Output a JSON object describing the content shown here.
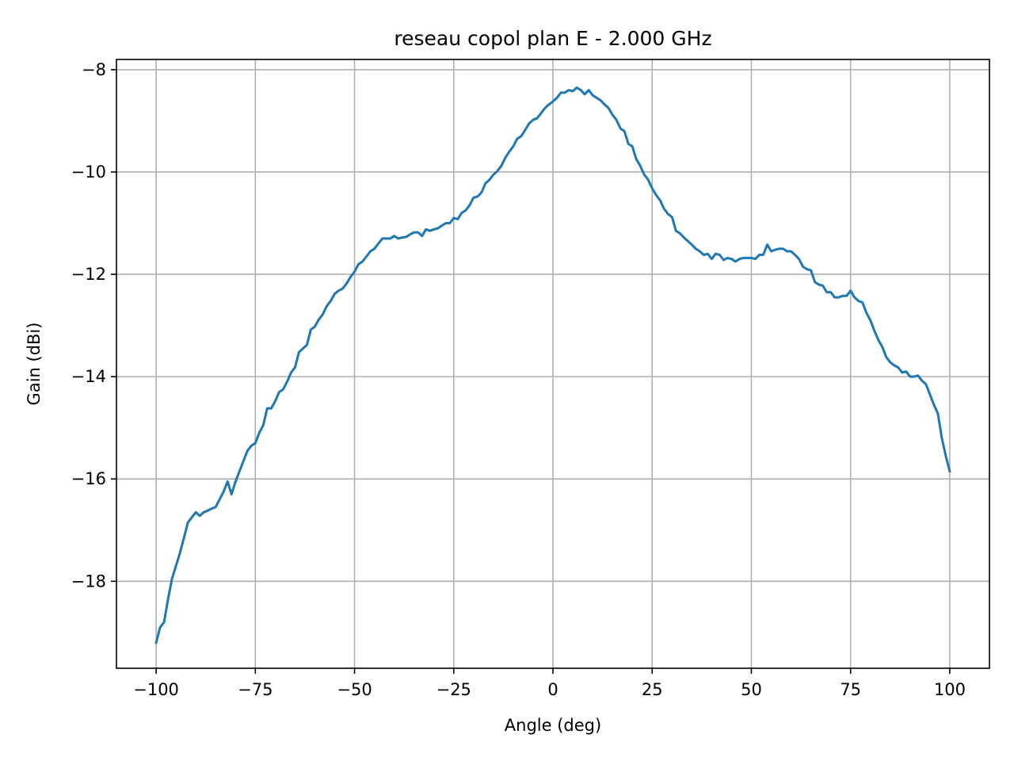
{
  "chart_data": {
    "type": "line",
    "title": "reseau copol plan E - 2.000 GHz",
    "xlabel": "Angle (deg)",
    "ylabel": "Gain (dBi)",
    "xlim": [
      -110,
      110
    ],
    "ylim": [
      -19.7,
      -7.8
    ],
    "xticks": [
      -100,
      -75,
      -50,
      -25,
      0,
      25,
      50,
      75,
      100
    ],
    "yticks": [
      -8,
      -10,
      -12,
      -14,
      -16,
      -18
    ],
    "xtick_labels": [
      "−100",
      "−75",
      "−50",
      "−25",
      "0",
      "25",
      "50",
      "75",
      "100"
    ],
    "ytick_labels": [
      "−8",
      "−10",
      "−12",
      "−14",
      "−16",
      "−18"
    ],
    "grid": true,
    "line_color": "#1f77b4",
    "series": [
      {
        "x": [
          -100,
          -99,
          -98,
          -97,
          -96,
          -95,
          -94,
          -93,
          -92,
          -91,
          -90,
          -89,
          -88,
          -87,
          -86,
          -85,
          -84,
          -83,
          -82,
          -81,
          -80,
          -79,
          -78,
          -77,
          -76,
          -75,
          -74,
          -73,
          -72,
          -71,
          -70,
          -69,
          -68,
          -67,
          -66,
          -65,
          -64,
          -63,
          -62,
          -61,
          -60,
          -59,
          -58,
          -57,
          -56,
          -55,
          -54,
          -53,
          -52,
          -51,
          -50,
          -49,
          -48,
          -47,
          -46,
          -45,
          -44,
          -43,
          -42,
          -41,
          -40,
          -39,
          -38,
          -37,
          -36,
          -35,
          -34,
          -33,
          -32,
          -31,
          -30,
          -29,
          -28,
          -27,
          -26,
          -25,
          -24,
          -23,
          -22,
          -21,
          -20,
          -19,
          -18,
          -17,
          -16,
          -15,
          -14,
          -13,
          -12,
          -11,
          -10,
          -9,
          -8,
          -7,
          -6,
          -5,
          -4,
          -3,
          -2,
          -1,
          0,
          1,
          2,
          3,
          4,
          5,
          6,
          7,
          8,
          9,
          10,
          11,
          12,
          13,
          14,
          15,
          16,
          17,
          18,
          19,
          20,
          21,
          22,
          23,
          24,
          25,
          26,
          27,
          28,
          29,
          30,
          31,
          32,
          33,
          34,
          35,
          36,
          37,
          38,
          39,
          40,
          41,
          42,
          43,
          44,
          45,
          46,
          47,
          48,
          49,
          50,
          51,
          52,
          53,
          54,
          55,
          56,
          57,
          58,
          59,
          60,
          61,
          62,
          63,
          64,
          65,
          66,
          67,
          68,
          69,
          70,
          71,
          72,
          73,
          74,
          75,
          76,
          77,
          78,
          79,
          80,
          81,
          82,
          83,
          84,
          85,
          86,
          87,
          88,
          89,
          90,
          91,
          92,
          93,
          94,
          95,
          96,
          97,
          98,
          99,
          100
        ],
        "values": [
          -19.2,
          -18.9,
          -18.8,
          -18.35,
          -17.95,
          -17.7,
          -17.45,
          -17.15,
          -16.85,
          -16.75,
          -16.65,
          -16.72,
          -16.65,
          -16.62,
          -16.58,
          -16.55,
          -16.4,
          -16.25,
          -16.05,
          -16.3,
          -16.05,
          -15.85,
          -15.65,
          -15.45,
          -15.35,
          -15.3,
          -15.1,
          -14.95,
          -14.62,
          -14.62,
          -14.48,
          -14.3,
          -14.25,
          -14.1,
          -13.92,
          -13.82,
          -13.52,
          -13.45,
          -13.38,
          -13.08,
          -13.02,
          -12.88,
          -12.78,
          -12.62,
          -12.52,
          -12.38,
          -12.32,
          -12.28,
          -12.18,
          -12.05,
          -11.95,
          -11.8,
          -11.75,
          -11.65,
          -11.55,
          -11.5,
          -11.4,
          -11.3,
          -11.3,
          -11.3,
          -11.25,
          -11.3,
          -11.28,
          -11.27,
          -11.22,
          -11.18,
          -11.18,
          -11.25,
          -11.12,
          -11.15,
          -11.12,
          -11.1,
          -11.05,
          -11.0,
          -11.0,
          -10.9,
          -10.92,
          -10.8,
          -10.75,
          -10.65,
          -10.5,
          -10.48,
          -10.4,
          -10.22,
          -10.15,
          -10.05,
          -9.98,
          -9.88,
          -9.72,
          -9.6,
          -9.5,
          -9.35,
          -9.3,
          -9.18,
          -9.05,
          -8.98,
          -8.95,
          -8.85,
          -8.75,
          -8.68,
          -8.62,
          -8.55,
          -8.45,
          -8.45,
          -8.4,
          -8.42,
          -8.35,
          -8.4,
          -8.48,
          -8.4,
          -8.5,
          -8.55,
          -8.6,
          -8.68,
          -8.75,
          -8.88,
          -8.98,
          -9.15,
          -9.2,
          -9.45,
          -9.5,
          -9.75,
          -9.88,
          -10.05,
          -10.15,
          -10.32,
          -10.45,
          -10.55,
          -10.72,
          -10.82,
          -10.88,
          -11.15,
          -11.2,
          -11.28,
          -11.35,
          -11.42,
          -11.5,
          -11.55,
          -11.62,
          -11.6,
          -11.7,
          -11.6,
          -11.62,
          -11.72,
          -11.68,
          -11.7,
          -11.75,
          -11.7,
          -11.68,
          -11.68,
          -11.68,
          -11.7,
          -11.62,
          -11.62,
          -11.42,
          -11.55,
          -11.52,
          -11.5,
          -11.5,
          -11.55,
          -11.55,
          -11.62,
          -11.7,
          -11.85,
          -11.9,
          -11.92,
          -12.15,
          -12.2,
          -12.22,
          -12.35,
          -12.35,
          -12.45,
          -12.45,
          -12.42,
          -12.42,
          -12.32,
          -12.45,
          -12.52,
          -12.55,
          -12.75,
          -12.9,
          -13.1,
          -13.28,
          -13.42,
          -13.62,
          -13.72,
          -13.78,
          -13.82,
          -13.92,
          -13.9,
          -14.0,
          -14.0,
          -13.98,
          -14.08,
          -14.15,
          -14.35,
          -14.55,
          -14.72,
          -15.2,
          -15.55,
          -15.85
        ]
      }
    ]
  }
}
